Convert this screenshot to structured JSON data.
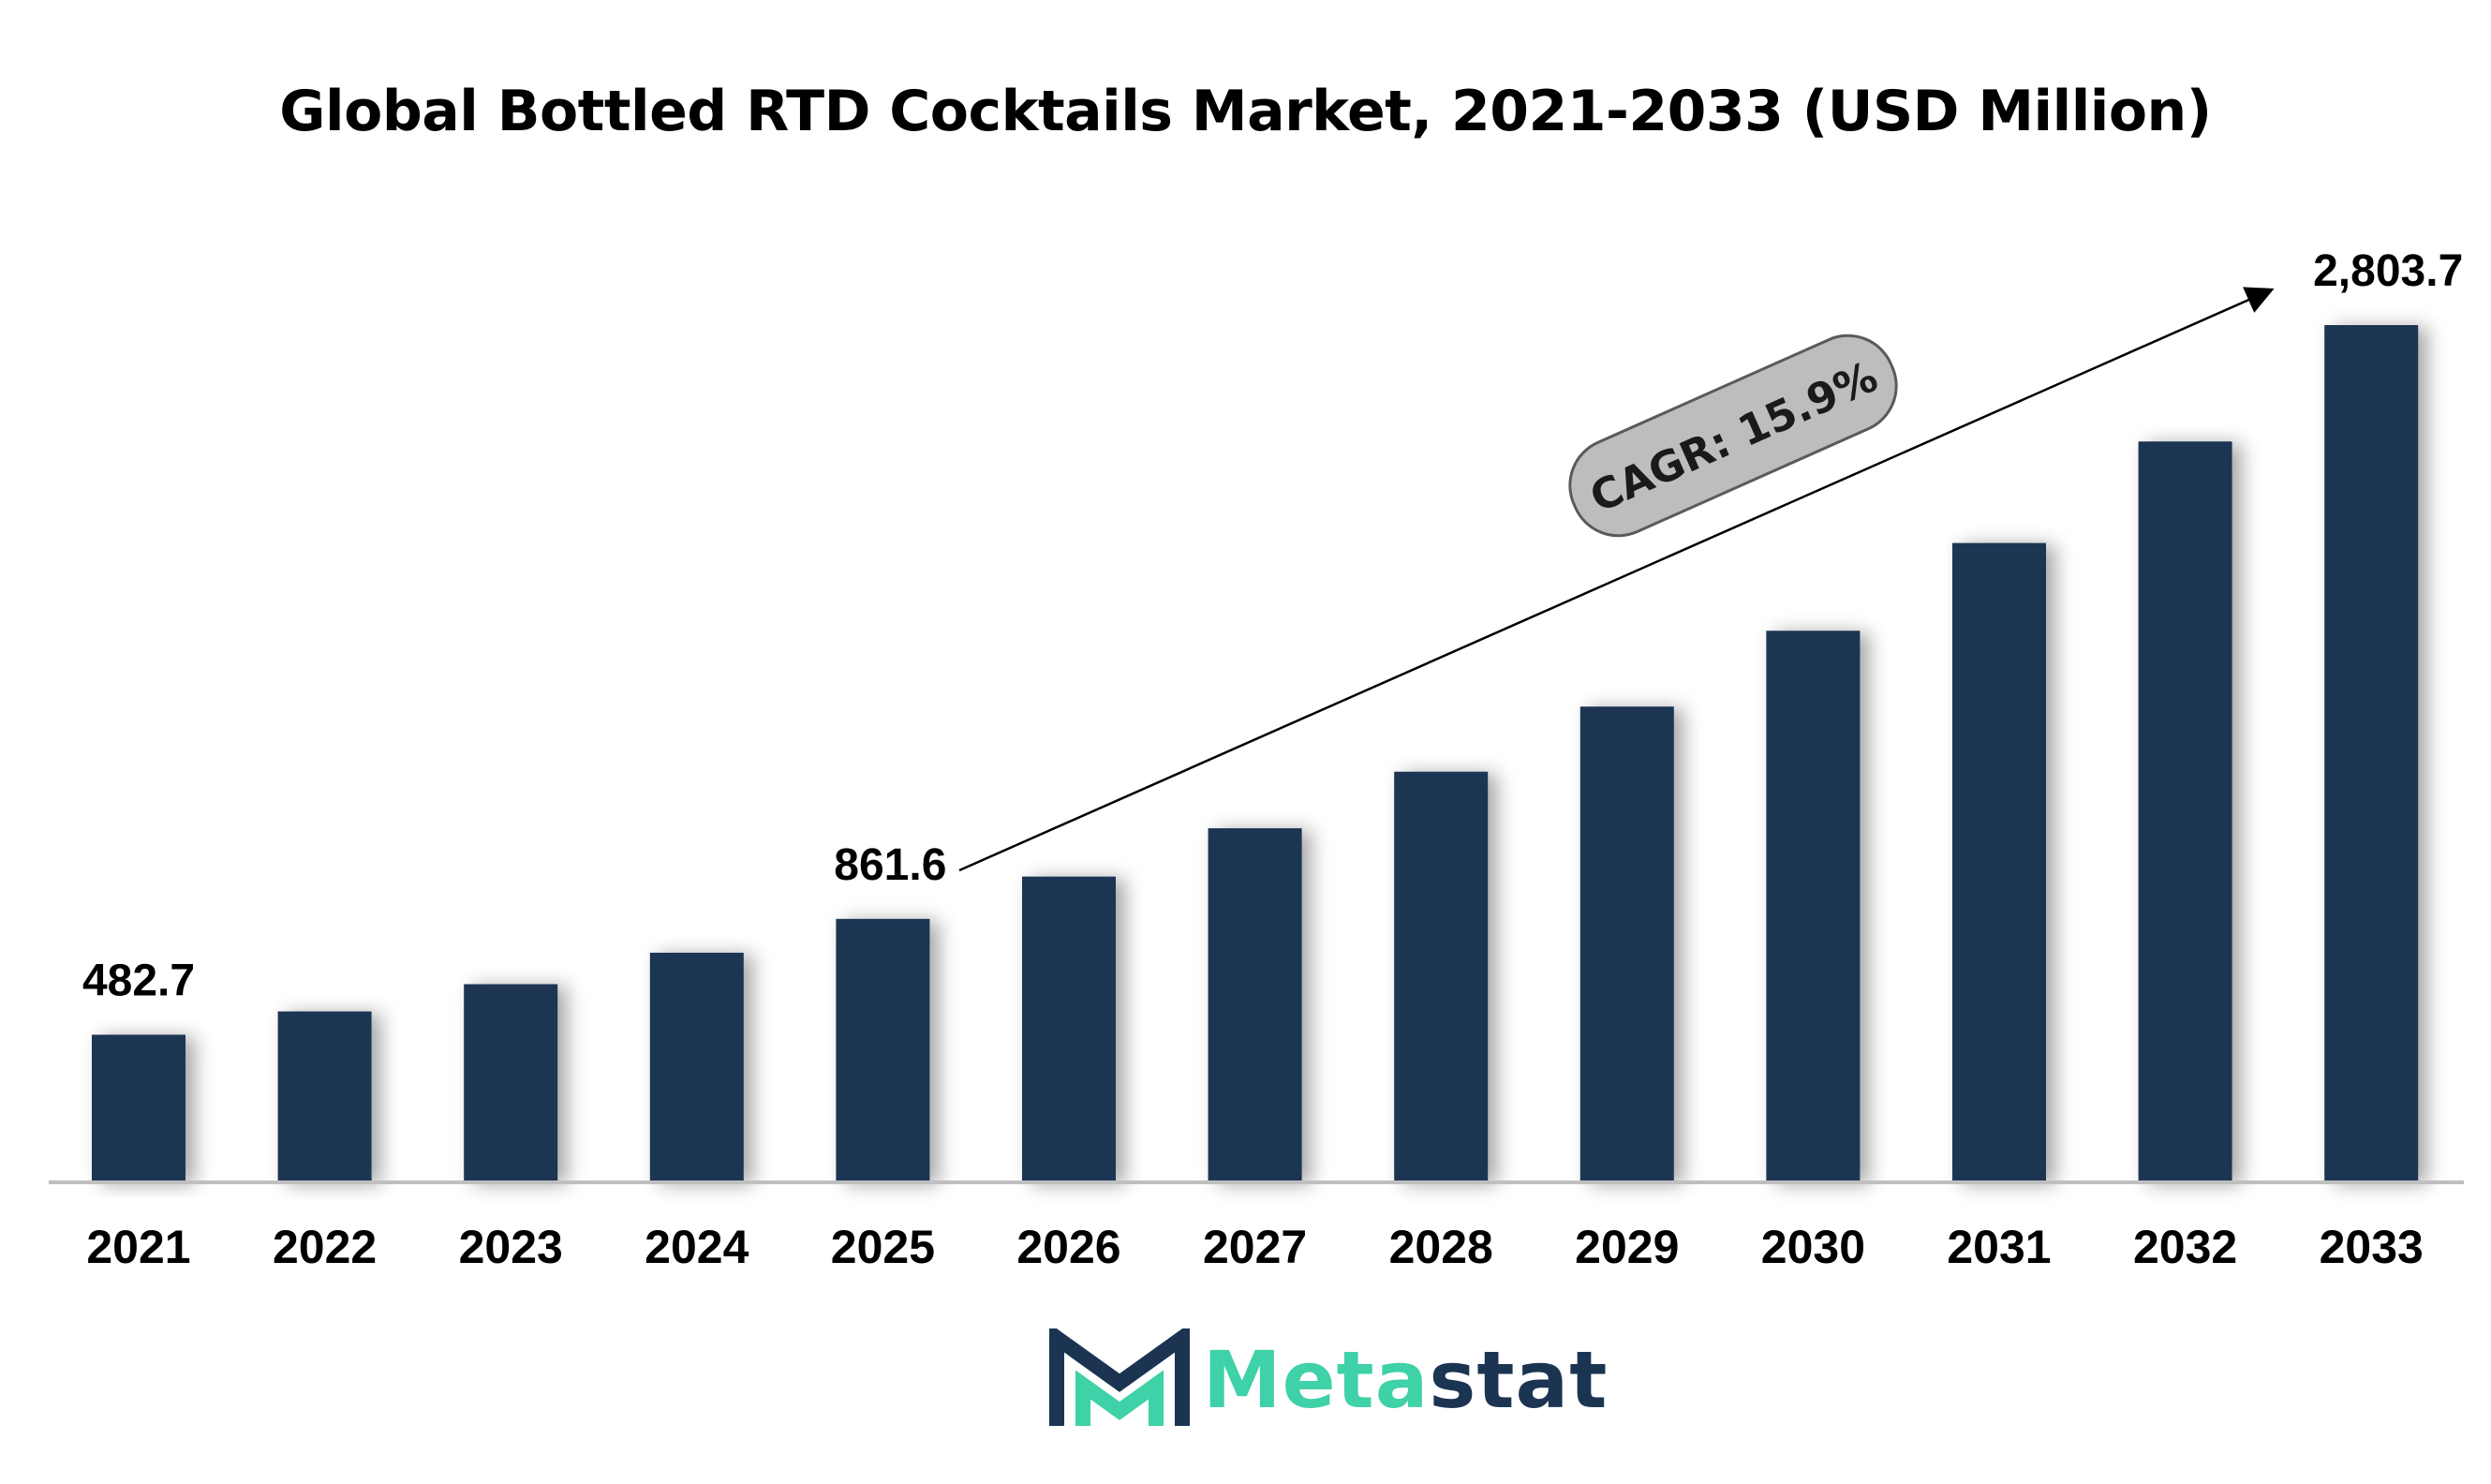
{
  "chart_data": {
    "type": "bar",
    "title": "Global Bottled RTD Cocktails Market, 2021-2033 (USD Million)",
    "xlabel": "",
    "ylabel": "",
    "categories": [
      "2021",
      "2022",
      "2023",
      "2024",
      "2025",
      "2026",
      "2027",
      "2028",
      "2029",
      "2030",
      "2031",
      "2032",
      "2033"
    ],
    "values": [
      482.7,
      559,
      648,
      751,
      861.6,
      1000,
      1158,
      1343,
      1556,
      1804,
      2091,
      2423,
      2803.7
    ],
    "value_labels": [
      {
        "category": "2021",
        "text": "482.7"
      },
      {
        "category": "2025",
        "text": "861.6"
      },
      {
        "category": "2033",
        "text": "2,803.7"
      }
    ],
    "annotation": {
      "text": "CAGR: 15.9%",
      "from": "2025",
      "to": "2033"
    },
    "ylim": [
      0,
      2900
    ],
    "grid": false,
    "legend": "none",
    "bar_color": "#1b3452"
  },
  "logo": {
    "part_a": "Meta",
    "part_b": "stat",
    "accent_color": "#3fd1a7",
    "dark_color": "#1b3452"
  }
}
